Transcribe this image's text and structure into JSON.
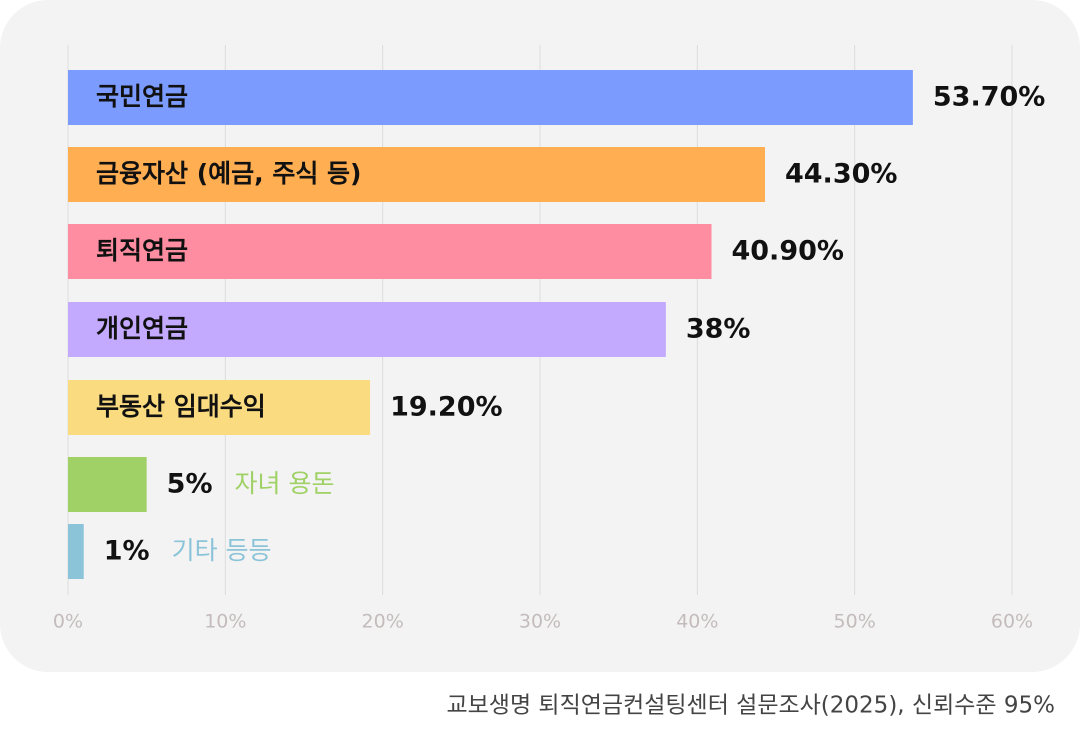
{
  "chart_data": {
    "type": "hbar",
    "categories": [
      "국민연금",
      "금융자산 (예금, 주식 등)",
      "퇴직연금",
      "개인연금",
      "부동산 임대수익",
      "자녀 용돈",
      "기타 등등"
    ],
    "values": [
      53.7,
      44.3,
      40.9,
      38,
      19.2,
      5,
      1
    ],
    "value_labels": [
      "53.70%",
      "44.30%",
      "40.90%",
      "38%",
      "19.20%",
      "5%",
      "1%"
    ],
    "colors": [
      "#7b9bff",
      "#ffae52",
      "#ff8da1",
      "#c4aaff",
      "#fadb80",
      "#a0d166",
      "#8bc4d8"
    ],
    "xlim": [
      0,
      60
    ],
    "xticks": [
      {
        "value": 0,
        "label": "0%"
      },
      {
        "value": 10,
        "label": "10%"
      },
      {
        "value": 20,
        "label": "20%"
      },
      {
        "value": 30,
        "label": "30%"
      },
      {
        "value": 40,
        "label": "40%"
      },
      {
        "value": 50,
        "label": "50%"
      },
      {
        "value": 60,
        "label": "60%"
      }
    ],
    "grid": true,
    "source": "교보생명 퇴직연금컨설팅센터 설문조사(2025), 신뢰수준 95%"
  }
}
